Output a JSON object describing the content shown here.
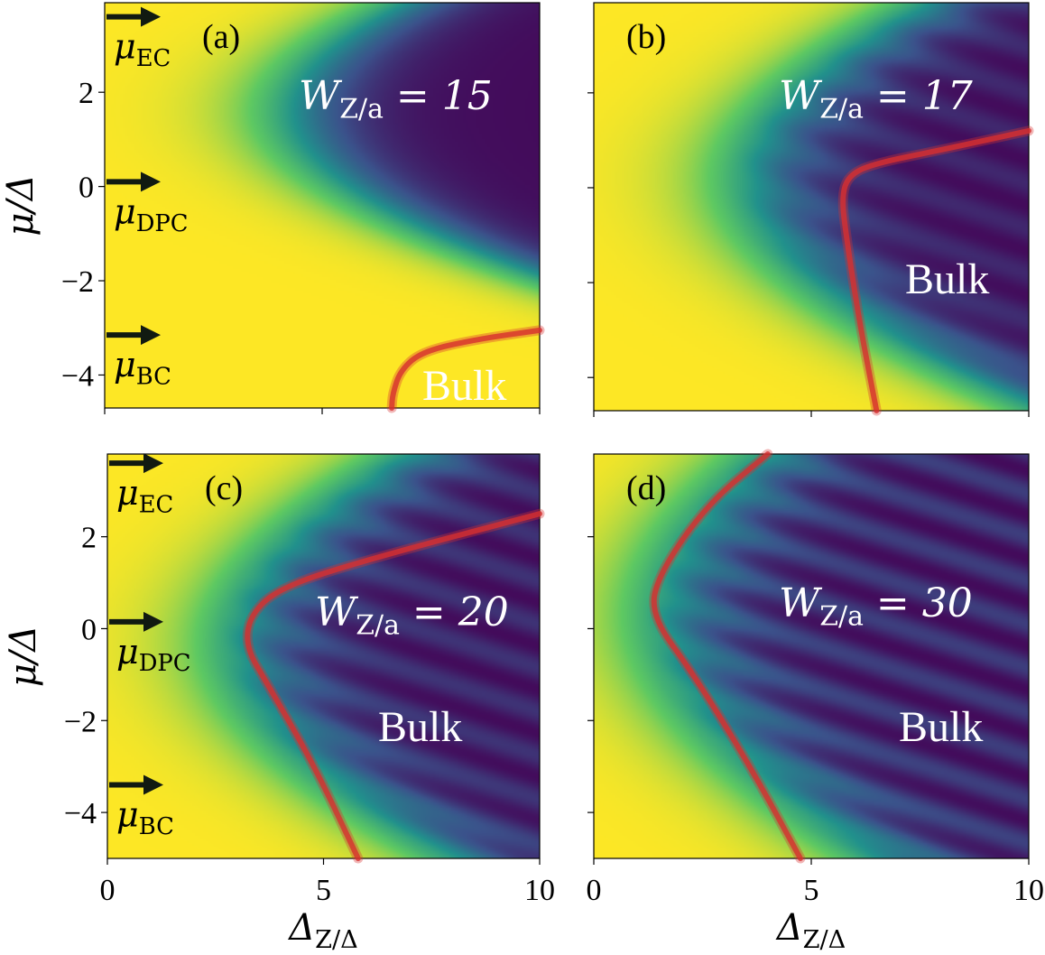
{
  "colormap": {
    "stops": [
      "#440154",
      "#3b528b",
      "#21918c",
      "#5ec962",
      "#fde725"
    ],
    "boundary_line": "#d73030",
    "arrow": "#111a11",
    "annotation_text": "#ffffff",
    "label_text": "#000000"
  },
  "chart_data": [
    {
      "type": "heatmap",
      "panel_label": "(a)",
      "width_label": "W_Z/a = 15",
      "width_value": 15,
      "bulk_label": "Bulk",
      "xlim": [
        0,
        10
      ],
      "ylim": [
        -4.7,
        3.9
      ],
      "x_ticks": [
        0,
        5,
        10
      ],
      "y_ticks": [
        2,
        0,
        -2,
        -4
      ],
      "x_tick_labels": [],
      "y_tick_labels": [
        "2",
        "0",
        "−2",
        "−4"
      ],
      "xlabel": "",
      "ylabel": "μ/Δ",
      "arrows": [
        {
          "y": 3.6,
          "label": "μ_EC"
        },
        {
          "y": 0.1,
          "label": "μ_DPC"
        },
        {
          "y": -3.15,
          "label": "μ_BC"
        }
      ],
      "boundary": [
        {
          "x": 6.6,
          "y": -4.7
        },
        {
          "x": 6.62,
          "y": -4.4
        },
        {
          "x": 6.8,
          "y": -3.9
        },
        {
          "x": 7.3,
          "y": -3.5
        },
        {
          "x": 8.5,
          "y": -3.25
        },
        {
          "x": 10.0,
          "y": -3.05
        }
      ],
      "trend": {
        "k": 0.55,
        "c": 4.3,
        "p": 1.6,
        "sigma": 3.5,
        "fringe": 0.0
      }
    },
    {
      "type": "heatmap",
      "panel_label": "(b)",
      "width_label": "W_Z/a = 17",
      "width_value": 17,
      "bulk_label": "Bulk",
      "xlim": [
        0,
        10
      ],
      "ylim": [
        -4.7,
        3.9
      ],
      "x_ticks": [
        0,
        5,
        10
      ],
      "y_ticks": [
        2,
        0,
        -2,
        -4
      ],
      "x_tick_labels": [],
      "y_tick_labels": [],
      "xlabel": "",
      "ylabel": "",
      "arrows": [],
      "boundary": [
        {
          "x": 6.5,
          "y": -4.7
        },
        {
          "x": 6.1,
          "y": -2.8
        },
        {
          "x": 5.8,
          "y": -1.0
        },
        {
          "x": 5.7,
          "y": -0.2
        },
        {
          "x": 5.85,
          "y": 0.25
        },
        {
          "x": 6.4,
          "y": 0.5
        },
        {
          "x": 8.0,
          "y": 0.8
        },
        {
          "x": 10.0,
          "y": 1.2
        }
      ],
      "trend": {
        "k": 0.35,
        "c": 3.6,
        "p": 0.2,
        "sigma": 3.5,
        "fringe": 0.25
      }
    },
    {
      "type": "heatmap",
      "panel_label": "(c)",
      "width_label": "W_Z/a = 20",
      "width_value": 20,
      "bulk_label": "Bulk",
      "xlim": [
        0,
        10
      ],
      "ylim": [
        -5.0,
        3.8
      ],
      "x_ticks": [
        0,
        5,
        10
      ],
      "y_ticks": [
        2,
        0,
        -2,
        -4
      ],
      "x_tick_labels": [
        "0",
        "5",
        "10"
      ],
      "y_tick_labels": [
        "2",
        "0",
        "−2",
        "−4"
      ],
      "xlabel": "Δ_Z/Δ",
      "ylabel": "μ/Δ",
      "arrows": [
        {
          "y": 3.6,
          "label": "μ_EC"
        },
        {
          "y": 0.15,
          "label": "μ_DPC"
        },
        {
          "y": -3.4,
          "label": "μ_BC"
        }
      ],
      "boundary": [
        {
          "x": 5.8,
          "y": -5.0
        },
        {
          "x": 4.8,
          "y": -3.0
        },
        {
          "x": 3.7,
          "y": -1.2
        },
        {
          "x": 3.2,
          "y": -0.4
        },
        {
          "x": 3.3,
          "y": 0.3
        },
        {
          "x": 4.0,
          "y": 0.9
        },
        {
          "x": 6.0,
          "y": 1.5
        },
        {
          "x": 10.0,
          "y": 2.5
        }
      ],
      "trend": {
        "k": 0.28,
        "c": 3.0,
        "p": -0.3,
        "sigma": 3.5,
        "fringe": 0.35
      }
    },
    {
      "type": "heatmap",
      "panel_label": "(d)",
      "width_label": "W_Z/a = 30",
      "width_value": 30,
      "bulk_label": "Bulk",
      "xlim": [
        0,
        10
      ],
      "ylim": [
        -5.0,
        3.8
      ],
      "x_ticks": [
        0,
        5,
        10
      ],
      "y_ticks": [
        2,
        0,
        -2,
        -4
      ],
      "x_tick_labels": [
        "0",
        "5",
        "10"
      ],
      "y_tick_labels": [],
      "xlabel": "Δ_Z/Δ",
      "ylabel": "",
      "arrows": [],
      "boundary": [
        {
          "x": 4.75,
          "y": -5.0
        },
        {
          "x": 3.6,
          "y": -3.0
        },
        {
          "x": 2.3,
          "y": -1.0
        },
        {
          "x": 1.3,
          "y": 0.3
        },
        {
          "x": 1.5,
          "y": 1.2
        },
        {
          "x": 2.6,
          "y": 2.7
        },
        {
          "x": 4.0,
          "y": 3.8
        }
      ],
      "trend": {
        "k": 0.22,
        "c": 1.6,
        "p": 0.3,
        "sigma": 3.5,
        "fringe": 0.45
      }
    }
  ]
}
